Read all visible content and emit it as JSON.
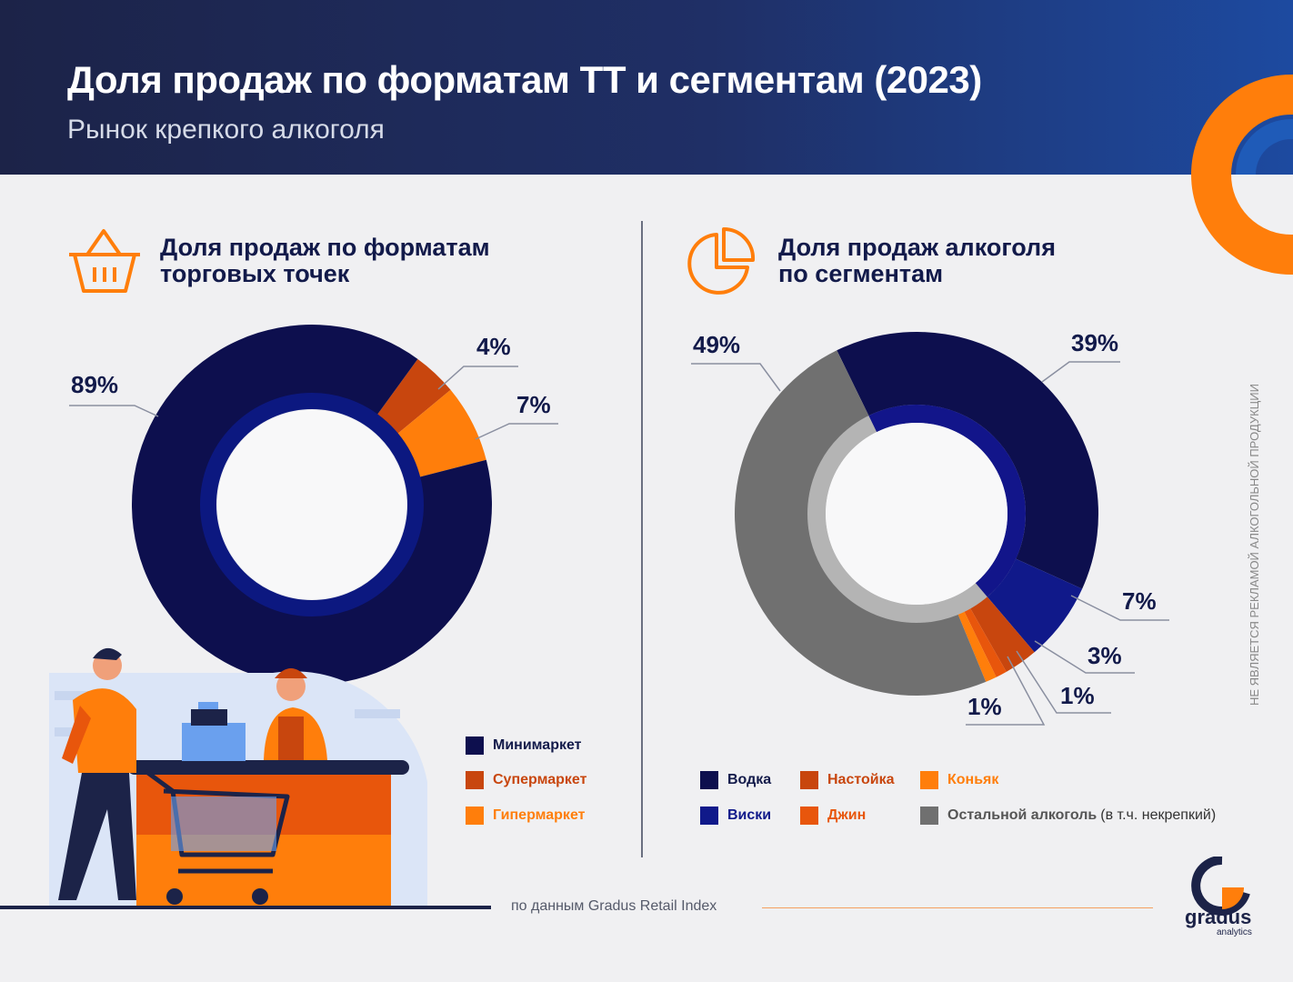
{
  "header": {
    "title": "Доля продаж по форматам ТТ и сегментам (2023)",
    "subtitle": "Рынок крепкого алкоголя"
  },
  "left_section": {
    "title": "Доля продаж по форматам\nторговых точек"
  },
  "right_section": {
    "title": "Доля продаж алкоголя\nпо сегментам"
  },
  "left_legend": [
    {
      "label": "Минимаркет",
      "color": "#0d0f4e"
    },
    {
      "label": "Супермаркет",
      "color": "#c8460e"
    },
    {
      "label": "Гипермаркет",
      "color": "#ff7e0b"
    }
  ],
  "right_legend": [
    {
      "label": "Водка",
      "color": "#0d0f4e"
    },
    {
      "label": "Настойка",
      "color": "#c8460e"
    },
    {
      "label": "Коньяк",
      "color": "#ff7e0b"
    },
    {
      "label": "Виски",
      "color": "#10198a"
    },
    {
      "label": "Джин",
      "color": "#e8560c"
    },
    {
      "label": "Остальной алкоголь",
      "note": "(в т.ч. некрепкий)",
      "color": "#707070"
    }
  ],
  "source": "по данным Gradus Retail Index",
  "vertical_note": "НЕ ЯВЛЯЕТСЯ РЕКЛАМОЙ АЛКОГОЛЬНОЙ ПРОДУКЦИИ",
  "logo": {
    "name": "gradus",
    "sub": "analytics"
  },
  "chart_data": [
    {
      "type": "pie",
      "categories": [
        "Минимаркет",
        "Супермаркет",
        "Гипермаркет"
      ],
      "values": [
        89,
        4,
        7
      ],
      "labels": [
        "89%",
        "4%",
        "7%"
      ],
      "colors": [
        "#0d0f4e",
        "#c8460e",
        "#ff7e0b"
      ]
    },
    {
      "type": "pie",
      "categories": [
        "Водка",
        "Виски",
        "Настойка",
        "Джин",
        "Коньяк",
        "Остальной алкоголь"
      ],
      "values": [
        39,
        7,
        3,
        1,
        1,
        49
      ],
      "labels": [
        "39%",
        "7%",
        "3%",
        "1%",
        "1%",
        "49%"
      ],
      "colors": [
        "#0d0f4e",
        "#10198a",
        "#c8460e",
        "#e8560c",
        "#ff7e0b",
        "#707070"
      ]
    }
  ]
}
